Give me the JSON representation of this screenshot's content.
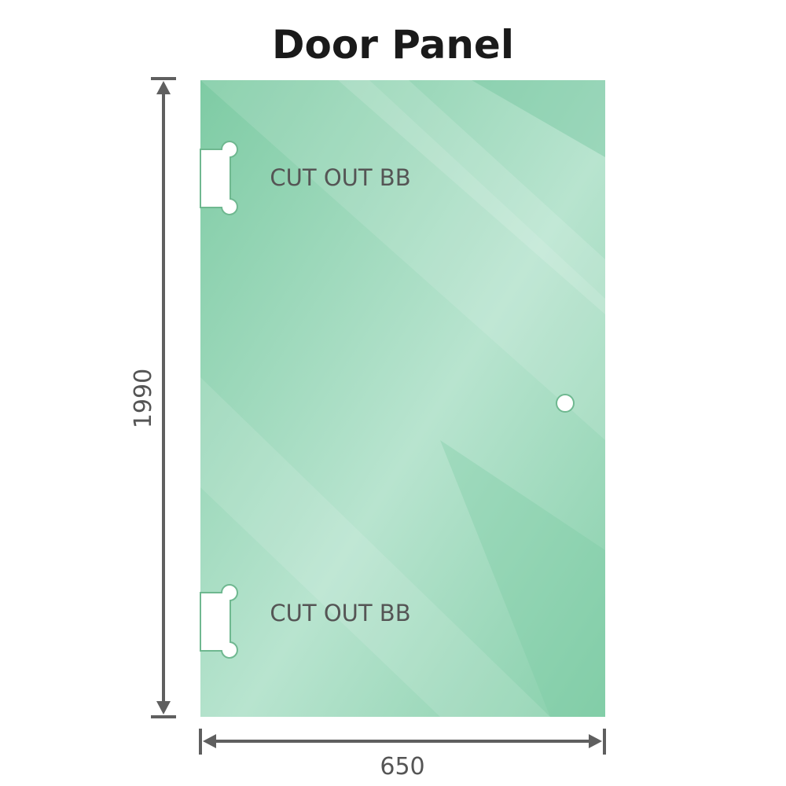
{
  "title": "Door Panel",
  "panel": {
    "color": "#8ed1b0",
    "cutout_top_label": "CUT OUT BB",
    "cutout_bottom_label": "CUT OUT BB"
  },
  "dimensions": {
    "height": "1990",
    "width": "650",
    "line_color": "#5f5f5f"
  }
}
